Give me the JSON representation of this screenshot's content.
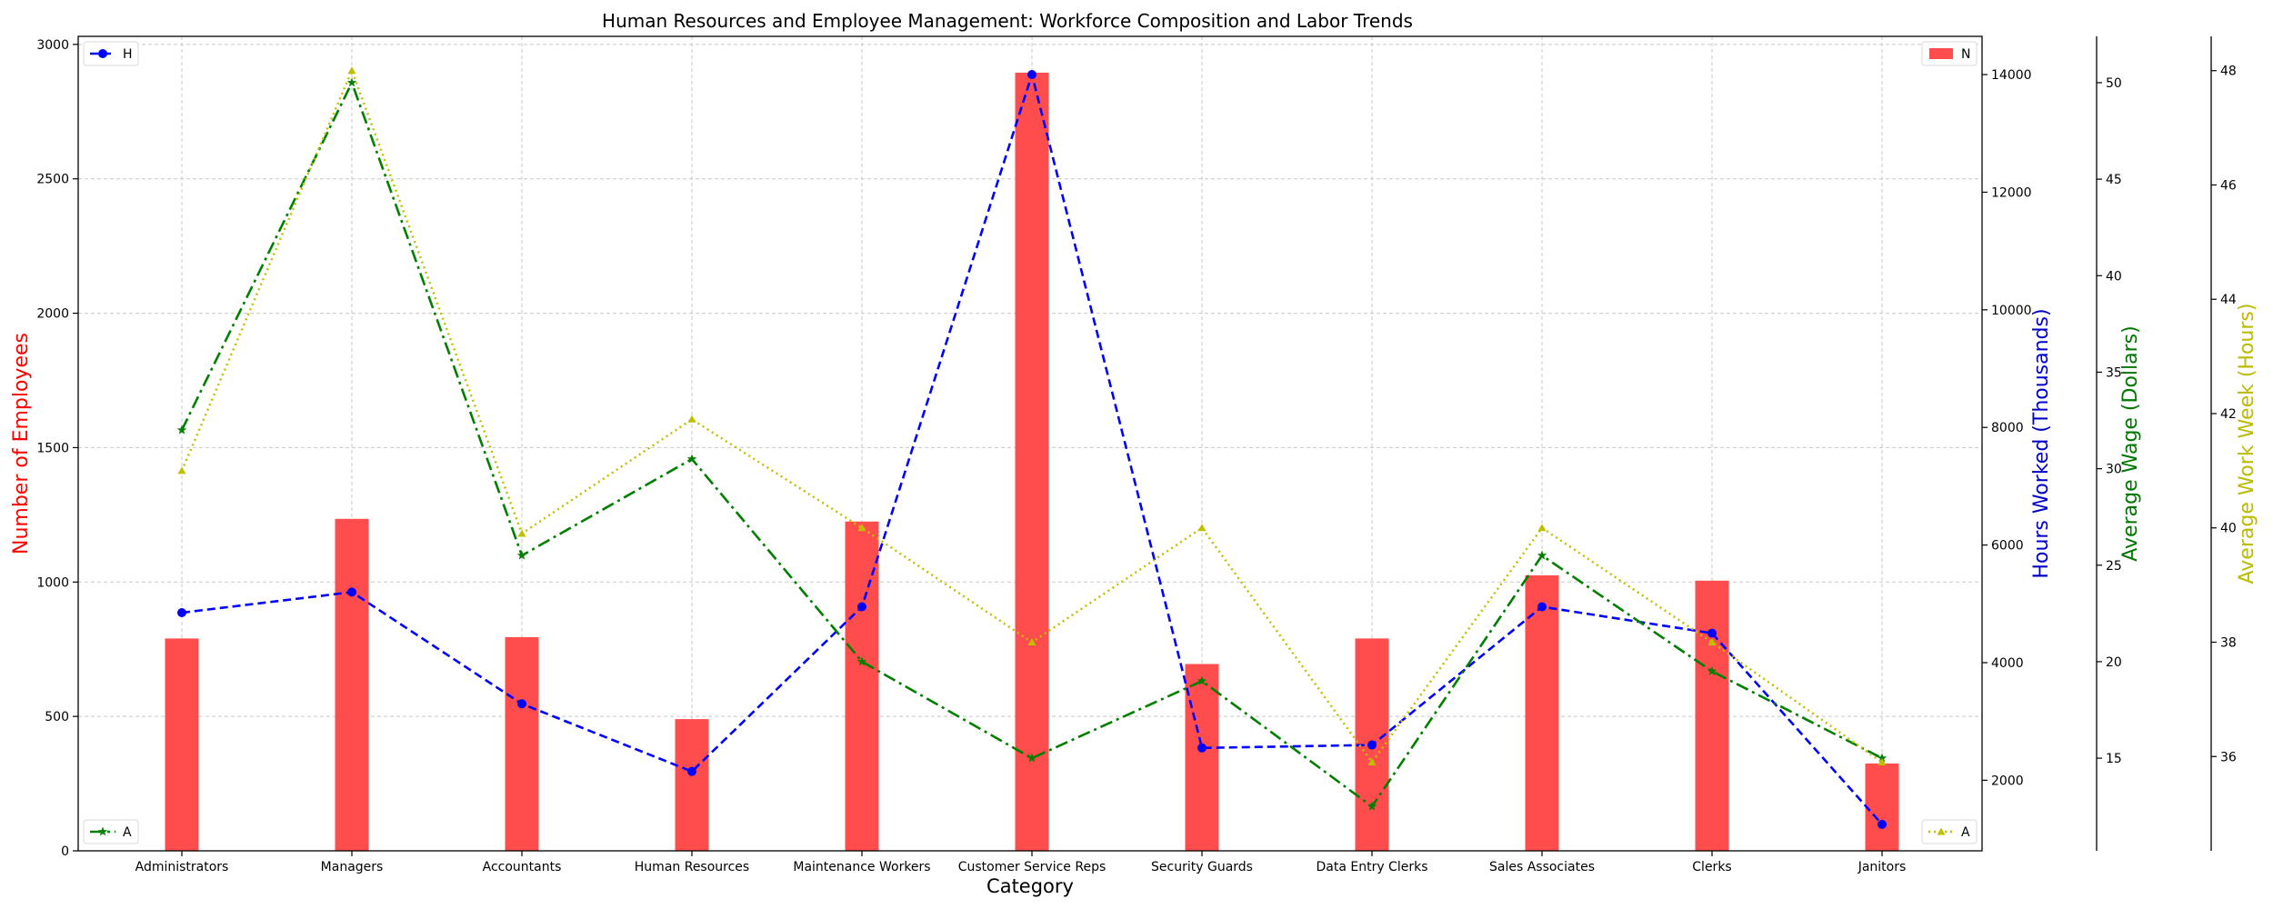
{
  "chart_data": {
    "type": "bar",
    "title": "Human Resources and Employee Management: Workforce Composition and Labor Trends",
    "xlabel": "Category",
    "categories": [
      "Administrators",
      "Managers",
      "Accountants",
      "Human Resources",
      "Maintenance Workers",
      "Customer Service Reps",
      "Security Guards",
      "Data Entry Clerks",
      "Sales Associates",
      "Clerks",
      "Janitors"
    ],
    "grid": true,
    "axes": {
      "employees": {
        "label": "Number of Employees",
        "ylim": [
          0,
          3030
        ],
        "ticks": [
          0,
          500,
          1000,
          1500,
          2000,
          2500,
          3000
        ],
        "color": "#ff0000"
      },
      "hours": {
        "label": "Hours Worked (Thousands)",
        "ylim": [
          800,
          14650
        ],
        "ticks": [
          2000,
          4000,
          6000,
          8000,
          10000,
          12000,
          14000
        ],
        "color": "#0000cc"
      },
      "wage": {
        "label": "Average Wage (Dollars)",
        "ylim": [
          10.2,
          52.4
        ],
        "ticks": [
          15,
          20,
          25,
          30,
          35,
          40,
          45,
          50
        ],
        "color": "#007700"
      },
      "workweek": {
        "label": "Average Work Week (Hours)",
        "ylim": [
          34.35,
          48.6
        ],
        "ticks": [
          36,
          38,
          40,
          42,
          44,
          46,
          48
        ],
        "color": "#bbbb00"
      }
    },
    "series": [
      {
        "name": "N",
        "kind": "bar",
        "axis": "employees",
        "color": "#ff4d4d",
        "values": [
          790,
          1235,
          795,
          490,
          1225,
          2895,
          695,
          790,
          1025,
          1005,
          325
        ]
      },
      {
        "name": "H",
        "kind": "line",
        "axis": "hours",
        "color": "#0000ff",
        "marker": "circle",
        "dash": "dashed",
        "values": [
          4850,
          5200,
          3300,
          2150,
          4950,
          14000,
          2550,
          2600,
          4950,
          4500,
          1250
        ]
      },
      {
        "name": "A",
        "kind": "line",
        "axis": "wage",
        "color": "#007f00",
        "marker": "star",
        "dash": "dashdot",
        "values": [
          32,
          50,
          25.5,
          30.5,
          20,
          15,
          19,
          12.5,
          25.5,
          19.5,
          15
        ]
      },
      {
        "name": "A",
        "kind": "line",
        "axis": "workweek",
        "color": "#bfbf00",
        "marker": "triangle",
        "dash": "dotted",
        "values": [
          41,
          48,
          39.9,
          41.9,
          40,
          38,
          40,
          35.9,
          40,
          38,
          35.9
        ]
      }
    ],
    "legends": [
      {
        "label": "H",
        "placement": "upper-left"
      },
      {
        "label": "N",
        "placement": "upper-right"
      },
      {
        "label": "A",
        "placement": "lower-left"
      },
      {
        "label": "A",
        "placement": "lower-right"
      }
    ]
  }
}
